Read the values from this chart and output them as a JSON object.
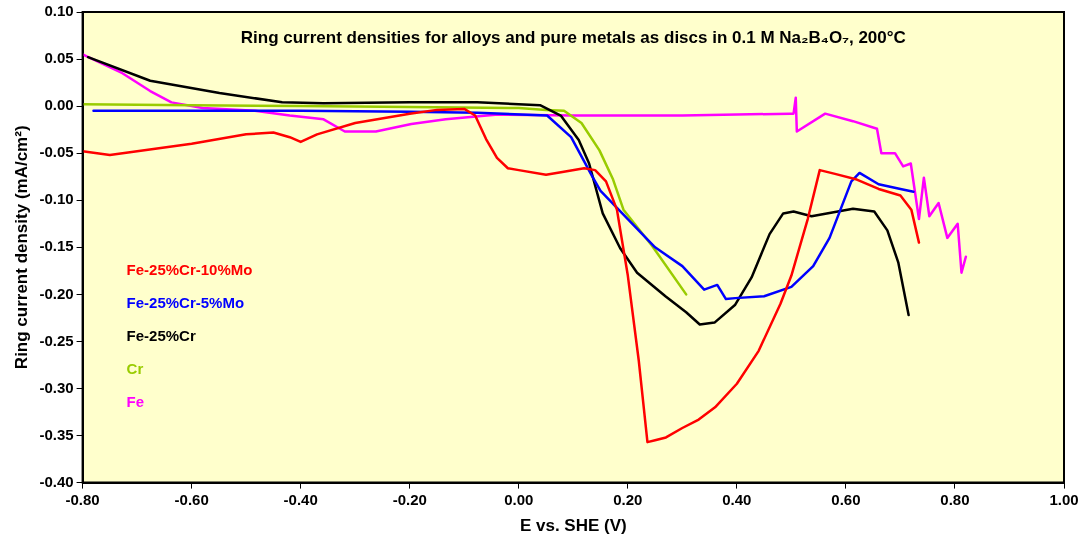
{
  "chart_data": {
    "type": "line",
    "title": "Ring current densities for alloys and pure metals as discs in 0.1 M Na₂B₄O₇, 200°C",
    "xlabel": "E vs. SHE (V)",
    "ylabel": "Ring current density (mA/cm²)",
    "xlim": [
      -0.8,
      1.0
    ],
    "xticks": [
      {
        "value": -0.8,
        "label": "-0.80"
      },
      {
        "value": -0.6,
        "label": "-0.60"
      },
      {
        "value": -0.4,
        "label": "-0.40"
      },
      {
        "value": -0.2,
        "label": "-0.20"
      },
      {
        "value": 0,
        "label": "0.00"
      },
      {
        "value": 0.2,
        "label": "0.20"
      },
      {
        "value": 0.4,
        "label": "0.40"
      },
      {
        "value": 0.6,
        "label": "0.60"
      },
      {
        "value": 0.8,
        "label": "0.80"
      },
      {
        "value": 1.0,
        "label": "1.00"
      }
    ],
    "ylim": [
      -0.4,
      0.1
    ],
    "yticks": [
      {
        "value": -0.4,
        "label": "-0.40"
      },
      {
        "value": -0.35,
        "label": "-0.35"
      },
      {
        "value": -0.3,
        "label": "-0.30"
      },
      {
        "value": -0.25,
        "label": "-0.25"
      },
      {
        "value": -0.2,
        "label": "-0.20"
      },
      {
        "value": -0.15,
        "label": "-0.15"
      },
      {
        "value": -0.1,
        "label": "-0.10"
      },
      {
        "value": -0.05,
        "label": "-0.05"
      },
      {
        "value": 0,
        "label": "0.00"
      },
      {
        "value": 0.05,
        "label": "0.05"
      },
      {
        "value": 0.1,
        "label": "0.10"
      }
    ],
    "grid": false,
    "legend": "left",
    "marker": "none",
    "line_style": "solid",
    "series": [
      {
        "name": "Fe-25%Cr-10%Mo",
        "color": "#ff0000",
        "x": [
          -0.8,
          -0.75,
          -0.7,
          -0.6,
          -0.5,
          -0.45,
          -0.42,
          -0.4,
          -0.37,
          -0.3,
          -0.2,
          -0.15,
          -0.1,
          -0.08,
          -0.06,
          -0.04,
          -0.02,
          0.0,
          0.05,
          0.08,
          0.12,
          0.14,
          0.16,
          0.18,
          0.2,
          0.22,
          0.236,
          0.25,
          0.27,
          0.3,
          0.33,
          0.36,
          0.4,
          0.44,
          0.48,
          0.5,
          0.53,
          0.552,
          0.58,
          0.62,
          0.66,
          0.7,
          0.72,
          0.734
        ],
        "values": [
          -0.048,
          -0.052,
          -0.048,
          -0.04,
          -0.03,
          -0.028,
          -0.033,
          -0.038,
          -0.03,
          -0.018,
          -0.008,
          -0.004,
          -0.003,
          -0.01,
          -0.035,
          -0.055,
          -0.066,
          -0.068,
          -0.073,
          -0.07,
          -0.066,
          -0.068,
          -0.08,
          -0.11,
          -0.18,
          -0.27,
          -0.357,
          -0.355,
          -0.352,
          -0.342,
          -0.333,
          -0.32,
          -0.295,
          -0.26,
          -0.21,
          -0.18,
          -0.12,
          -0.068,
          -0.072,
          -0.078,
          -0.088,
          -0.095,
          -0.11,
          -0.145
        ]
      },
      {
        "name": "Fe-25%Cr-5%Mo",
        "color": "#0000ff",
        "x": [
          -0.78,
          -0.6,
          -0.4,
          -0.2,
          -0.076,
          0.052,
          0.096,
          0.135,
          0.15,
          0.2,
          0.25,
          0.3,
          0.34,
          0.364,
          0.38,
          0.397,
          0.45,
          0.5,
          0.54,
          0.57,
          0.59,
          0.61,
          0.625,
          0.66,
          0.7,
          0.724
        ],
        "values": [
          -0.005,
          -0.005,
          -0.005,
          -0.006,
          -0.007,
          -0.01,
          -0.033,
          -0.075,
          -0.09,
          -0.12,
          -0.15,
          -0.17,
          -0.195,
          -0.19,
          -0.205,
          -0.204,
          -0.202,
          -0.192,
          -0.17,
          -0.14,
          -0.11,
          -0.08,
          -0.071,
          -0.083,
          -0.088,
          -0.091
        ]
      },
      {
        "name": "Fe-25%Cr",
        "color": "#000000",
        "x": [
          -0.79,
          -0.676,
          -0.549,
          -0.434,
          -0.358,
          -0.2,
          -0.076,
          0.039,
          0.077,
          0.11,
          0.129,
          0.154,
          0.186,
          0.217,
          0.269,
          0.307,
          0.332,
          0.359,
          0.397,
          0.427,
          0.46,
          0.485,
          0.504,
          0.537,
          0.613,
          0.652,
          0.676,
          0.696,
          0.715
        ],
        "values": [
          0.052,
          0.027,
          0.014,
          0.004,
          0.003,
          0.004,
          0.004,
          0.001,
          -0.01,
          -0.036,
          -0.061,
          -0.114,
          -0.151,
          -0.177,
          -0.202,
          -0.219,
          -0.232,
          -0.23,
          -0.211,
          -0.182,
          -0.136,
          -0.114,
          -0.112,
          -0.117,
          -0.109,
          -0.112,
          -0.132,
          -0.166,
          -0.222
        ]
      },
      {
        "name": "Cr",
        "color": "#99cc00",
        "x": [
          -0.8,
          -0.6,
          -0.4,
          -0.2,
          0.0,
          0.05,
          0.083,
          0.115,
          0.148,
          0.173,
          0.192,
          0.244,
          0.307
        ],
        "values": [
          0.002,
          0.001,
          0.0,
          -0.001,
          -0.002,
          -0.004,
          -0.005,
          -0.018,
          -0.047,
          -0.078,
          -0.11,
          -0.148,
          -0.2
        ]
      },
      {
        "name": "Fe",
        "color": "#ff00ff",
        "x": [
          -0.8,
          -0.727,
          -0.676,
          -0.637,
          -0.58,
          -0.484,
          -0.42,
          -0.358,
          -0.319,
          -0.262,
          -0.197,
          -0.134,
          -0.038,
          0.1,
          0.3,
          0.498,
          0.504,
          0.508,
          0.51,
          0.562,
          0.613,
          0.657,
          0.665,
          0.69,
          0.705,
          0.719,
          0.734,
          0.743,
          0.753,
          0.77,
          0.786,
          0.805,
          0.812,
          0.82
        ],
        "values": [
          0.055,
          0.035,
          0.016,
          0.004,
          -0.002,
          -0.005,
          -0.01,
          -0.014,
          -0.027,
          -0.027,
          -0.019,
          -0.014,
          -0.009,
          -0.01,
          -0.01,
          -0.008,
          -0.008,
          0.009,
          -0.027,
          -0.008,
          -0.016,
          -0.024,
          -0.05,
          -0.05,
          -0.064,
          -0.061,
          -0.12,
          -0.076,
          -0.117,
          -0.103,
          -0.14,
          -0.125,
          -0.177,
          -0.16
        ]
      }
    ]
  }
}
